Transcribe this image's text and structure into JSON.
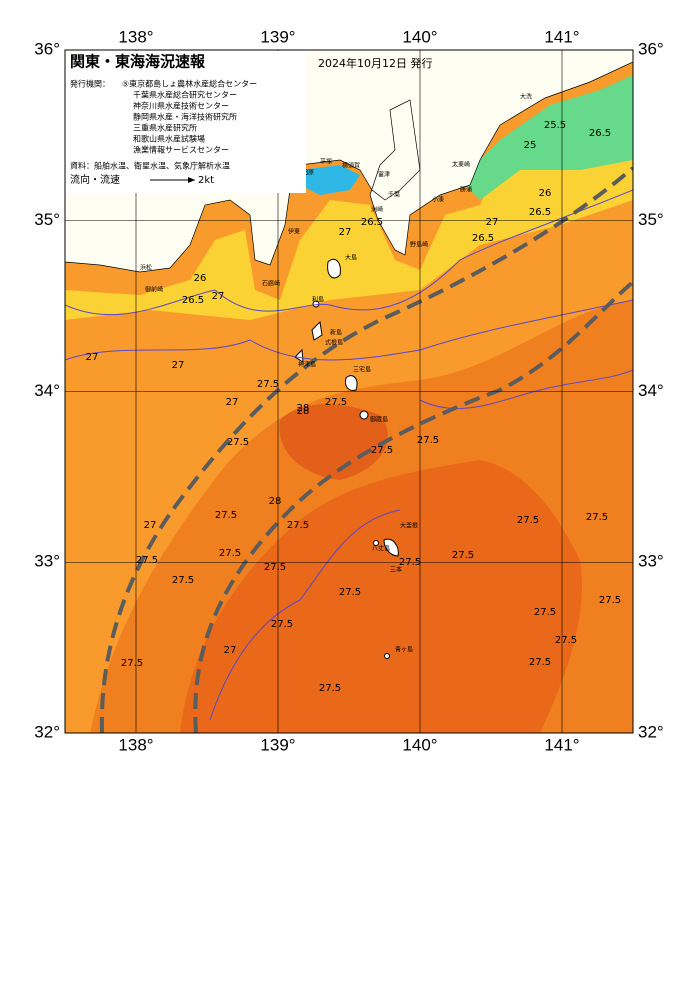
{
  "header": {
    "title": "関東・東海海況速報",
    "date": "2024年10月12日 発行"
  },
  "issuers": {
    "label": "発行機関：",
    "items": [
      "⑤東京都島しょ農林水産総合センター",
      "千葉県水産総合研究センター",
      "神奈川県水産技術センター",
      "静岡県水産・海洋技術研究所",
      "三重県水産研究所",
      "和歌山県水産試験場",
      "漁業情報サービスセンター"
    ]
  },
  "source": "資料：船舶水温、衛星水温、気象庁解析水温",
  "legend": {
    "label": "流向・流速",
    "speed": "2kt"
  },
  "map": {
    "xlim": [
      137.5,
      141.5
    ],
    "ylim": [
      32,
      36
    ],
    "xticks": [
      {
        "value": 138,
        "label": "138°"
      },
      {
        "value": 139,
        "label": "139°"
      },
      {
        "value": 140,
        "label": "140°"
      },
      {
        "value": 141,
        "label": "141°"
      }
    ],
    "yticks": [
      {
        "value": 36,
        "label": "36°"
      },
      {
        "value": 35,
        "label": "35°"
      },
      {
        "value": 34,
        "label": "34°"
      },
      {
        "value": 33,
        "label": "33°"
      },
      {
        "value": 32,
        "label": "32°"
      }
    ]
  },
  "contour_labels": [
    25.5,
    26.5,
    25,
    26,
    26.5,
    27,
    26.5,
    26.5,
    27,
    26,
    26.5,
    27,
    27,
    27,
    27.5,
    27,
    28,
    27.5,
    27.5,
    28,
    28,
    27.5,
    27.5,
    27,
    27.5,
    27.5,
    27.5,
    27.5,
    27.5,
    27.5,
    27.5,
    27.5,
    27.5,
    27.5,
    27.5,
    27.5,
    27.5,
    27.5,
    27.5,
    27,
    27.5,
    27.5,
    27.5
  ],
  "place_names": [
    "大洗",
    "太東崎",
    "勝浦",
    "小湊",
    "平塚",
    "横須賀",
    "富津",
    "千葉",
    "小田原",
    "洲崎",
    "野島崎",
    "大島",
    "利島",
    "新島",
    "式根島",
    "神津島",
    "三宅島",
    "御蔵島",
    "八丈島",
    "三本",
    "大釜根",
    "青ヶ島",
    "浜松",
    "御前崎",
    "伊東",
    "石廊崎"
  ]
}
